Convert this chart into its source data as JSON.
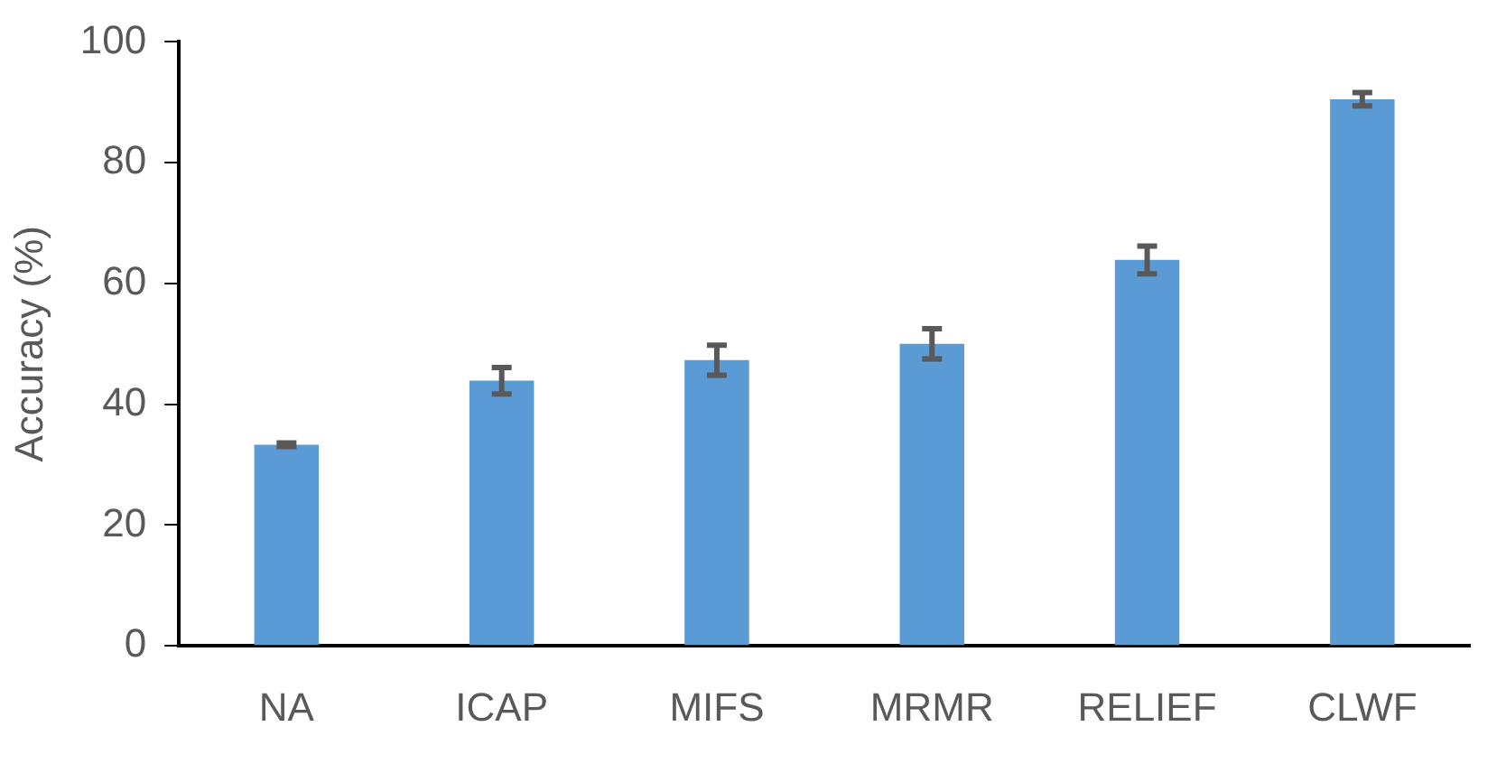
{
  "chart_data": {
    "type": "bar",
    "ylabel": "Accuracy (%)",
    "categories": [
      "NA",
      "ICAP",
      "MIFS",
      "MRMR",
      "RELIEF",
      "CLWF"
    ],
    "values": [
      33.3,
      43.9,
      47.3,
      50.0,
      63.9,
      90.5
    ],
    "errors": [
      0.3,
      2.2,
      2.5,
      2.5,
      2.3,
      1.1
    ],
    "color": "#5b9bd5",
    "ylim": [
      0,
      100
    ],
    "yticks": [
      0,
      20,
      40,
      60,
      80,
      100
    ],
    "grid": false,
    "legend": false
  }
}
